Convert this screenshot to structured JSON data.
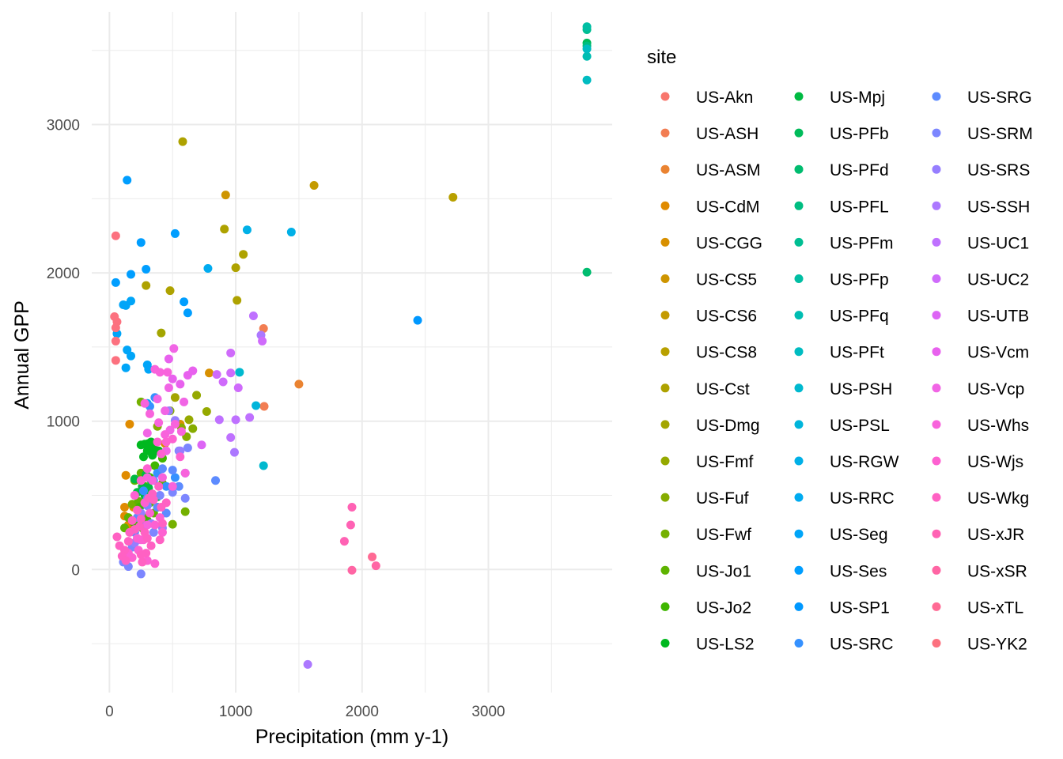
{
  "chart_data": {
    "type": "scatter",
    "xlabel": "Precipitation (mm y-1)",
    "ylabel": "Annual GPP",
    "x_ticks": [
      0,
      1000,
      2000,
      3000
    ],
    "y_ticks": [
      0,
      1000,
      2000,
      3000
    ],
    "xlim": [
      -140,
      3980
    ],
    "ylim": [
      -830,
      3760
    ],
    "grid": true,
    "legend": {
      "title": "site",
      "placement": "right",
      "columns": 3
    },
    "series": [
      {
        "name": "US-Akn",
        "color": "#F8766D",
        "points": []
      },
      {
        "name": "US-ASH",
        "color": "#F27D52",
        "points": [
          [
            1220,
            1625
          ],
          [
            1225,
            1100
          ]
        ]
      },
      {
        "name": "US-ASM",
        "color": "#EA8331",
        "points": [
          [
            1500,
            1250
          ]
        ]
      },
      {
        "name": "US-CdM",
        "color": "#E08B00",
        "points": [
          [
            160,
            980
          ],
          [
            130,
            635
          ],
          [
            120,
            420
          ],
          [
            120,
            360
          ],
          [
            190,
            420
          ],
          [
            150,
            300
          ]
        ]
      },
      {
        "name": "US-CGG",
        "color": "#D89000",
        "points": [
          [
            790,
            1325
          ],
          [
            560,
            980
          ],
          [
            440,
            850
          ]
        ]
      },
      {
        "name": "US-CS5",
        "color": "#CE9500",
        "points": [
          [
            920,
            2525
          ]
        ]
      },
      {
        "name": "US-CS6",
        "color": "#C49A00",
        "points": [
          [
            1620,
            2590
          ]
        ]
      },
      {
        "name": "US-CS8",
        "color": "#B8A000",
        "points": [
          [
            2720,
            2510
          ]
        ]
      },
      {
        "name": "US-Cst",
        "color": "#AEA200",
        "points": [
          [
            580,
            2885
          ],
          [
            910,
            2295
          ],
          [
            1060,
            2125
          ],
          [
            1000,
            2035
          ],
          [
            1010,
            1815
          ],
          [
            480,
            1880
          ],
          [
            290,
            1915
          ]
        ]
      },
      {
        "name": "US-Dmg",
        "color": "#A3A500",
        "points": [
          [
            410,
            1595
          ],
          [
            520,
            1160
          ]
        ]
      },
      {
        "name": "US-Fmf",
        "color": "#95A900",
        "points": [
          [
            770,
            1065
          ],
          [
            690,
            1175
          ],
          [
            630,
            1010
          ]
        ]
      },
      {
        "name": "US-Fuf",
        "color": "#86AC00",
        "points": [
          [
            570,
            955
          ],
          [
            660,
            950
          ],
          [
            610,
            895
          ],
          [
            480,
            1070
          ],
          [
            380,
            965
          ]
        ]
      },
      {
        "name": "US-Fwf",
        "color": "#74B000",
        "points": [
          [
            250,
            1130
          ],
          [
            500,
            305
          ],
          [
            380,
            420
          ],
          [
            600,
            390
          ],
          [
            180,
            440
          ]
        ]
      },
      {
        "name": "US-Jo1",
        "color": "#5EB300",
        "points": [
          [
            200,
            600
          ],
          [
            250,
            650
          ],
          [
            300,
            520
          ],
          [
            230,
            460
          ],
          [
            150,
            350
          ],
          [
            120,
            280
          ],
          [
            350,
            380
          ],
          [
            420,
            580
          ],
          [
            320,
            450
          ],
          [
            270,
            350
          ]
        ]
      },
      {
        "name": "US-Jo2",
        "color": "#3FB600",
        "points": [
          [
            360,
            700
          ],
          [
            420,
            750
          ],
          [
            280,
            560
          ],
          [
            320,
            620
          ],
          [
            190,
            320
          ],
          [
            240,
            420
          ],
          [
            260,
            280
          ],
          [
            300,
            330
          ]
        ]
      },
      {
        "name": "US-LS2",
        "color": "#00B81F",
        "points": [
          [
            250,
            840
          ],
          [
            280,
            845
          ],
          [
            300,
            800
          ],
          [
            330,
            860
          ],
          [
            350,
            820
          ],
          [
            310,
            850
          ],
          [
            390,
            800
          ],
          [
            270,
            760
          ],
          [
            340,
            770
          ]
        ]
      },
      {
        "name": "US-Mpj",
        "color": "#00BA42",
        "points": [
          [
            200,
            610
          ],
          [
            260,
            560
          ],
          [
            280,
            500
          ],
          [
            310,
            550
          ],
          [
            330,
            600
          ],
          [
            220,
            520
          ],
          [
            380,
            490
          ],
          [
            290,
            640
          ]
        ]
      },
      {
        "name": "US-PFb",
        "color": "#00BB5A",
        "points": [
          [
            3780,
            3550
          ]
        ]
      },
      {
        "name": "US-PFd",
        "color": "#00BC6F",
        "points": [
          [
            3780,
            2005
          ]
        ]
      },
      {
        "name": "US-PFL",
        "color": "#00BD81",
        "points": [
          [
            3780,
            3530
          ]
        ]
      },
      {
        "name": "US-PFm",
        "color": "#00BE92",
        "points": [
          [
            3780,
            3640
          ]
        ]
      },
      {
        "name": "US-PFp",
        "color": "#00BEA3",
        "points": [
          [
            3780,
            3660
          ]
        ]
      },
      {
        "name": "US-PFq",
        "color": "#00BDB2",
        "points": [
          [
            3780,
            3460
          ]
        ]
      },
      {
        "name": "US-PFt",
        "color": "#00BCC1",
        "points": [
          [
            3780,
            3300
          ],
          [
            3780,
            3510
          ]
        ]
      },
      {
        "name": "US-PSH",
        "color": "#00B9CF",
        "points": [
          [
            1030,
            1330
          ],
          [
            1220,
            700
          ]
        ]
      },
      {
        "name": "US-PSL",
        "color": "#00B5DB",
        "points": [
          [
            1160,
            1105
          ]
        ]
      },
      {
        "name": "US-RGW",
        "color": "#00B0E7",
        "points": [
          [
            1090,
            2290
          ],
          [
            1440,
            2275
          ]
        ]
      },
      {
        "name": "US-RRC",
        "color": "#00ABF0",
        "points": [
          [
            780,
            2030
          ]
        ]
      },
      {
        "name": "US-Seg",
        "color": "#00A5F8",
        "points": [
          [
            130,
            1780
          ],
          [
            60,
            1590
          ],
          [
            140,
            1480
          ],
          [
            170,
            1440
          ],
          [
            130,
            1360
          ],
          [
            300,
            1380
          ],
          [
            310,
            1350
          ],
          [
            300,
            1120
          ],
          [
            170,
            1810
          ],
          [
            110,
            1785
          ]
        ]
      },
      {
        "name": "US-Ses",
        "color": "#009EFF",
        "points": [
          [
            140,
            2625
          ],
          [
            250,
            2205
          ],
          [
            290,
            2025
          ],
          [
            170,
            1990
          ],
          [
            50,
            1935
          ],
          [
            590,
            1805
          ],
          [
            620,
            1730
          ],
          [
            520,
            2265
          ]
        ]
      },
      {
        "name": "US-SP1",
        "color": "#0098FF",
        "points": [
          [
            2440,
            1680
          ]
        ]
      },
      {
        "name": "US-SRC",
        "color": "#3591FF",
        "points": [
          [
            360,
            1160
          ],
          [
            320,
            1100
          ],
          [
            380,
            650
          ],
          [
            450,
            560
          ],
          [
            520,
            620
          ],
          [
            600,
            650
          ],
          [
            270,
            530
          ]
        ]
      },
      {
        "name": "US-SRG",
        "color": "#5D8BFF",
        "points": [
          [
            840,
            600
          ],
          [
            420,
            680
          ],
          [
            500,
            670
          ],
          [
            350,
            600
          ],
          [
            550,
            560
          ],
          [
            300,
            480
          ],
          [
            380,
            420
          ],
          [
            450,
            380
          ],
          [
            220,
            350
          ],
          [
            260,
            300
          ],
          [
            200,
            250
          ]
        ]
      },
      {
        "name": "US-SRM",
        "color": "#7C86FF",
        "points": [
          [
            300,
            430
          ],
          [
            400,
            500
          ],
          [
            500,
            520
          ],
          [
            600,
            480
          ],
          [
            550,
            800
          ],
          [
            620,
            820
          ],
          [
            230,
            200
          ],
          [
            180,
            150
          ],
          [
            150,
            20
          ],
          [
            110,
            50
          ],
          [
            250,
            -30
          ],
          [
            350,
            250
          ]
        ]
      },
      {
        "name": "US-SRS",
        "color": "#967EFF",
        "points": [
          [
            470,
            1070
          ],
          [
            520,
            1005
          ],
          [
            560,
            800
          ],
          [
            250,
            380
          ],
          [
            330,
            310
          ],
          [
            420,
            280
          ],
          [
            200,
            180
          ]
        ]
      },
      {
        "name": "US-SSH",
        "color": "#AC78FF",
        "points": [
          [
            1570,
            -640
          ],
          [
            1200,
            1580
          ],
          [
            990,
            790
          ]
        ]
      },
      {
        "name": "US-UC1",
        "color": "#BF71FF",
        "points": [
          [
            1140,
            1710
          ],
          [
            1000,
            1010
          ],
          [
            1110,
            1025
          ],
          [
            870,
            1010
          ],
          [
            960,
            890
          ]
        ]
      },
      {
        "name": "US-UC2",
        "color": "#CF6BFB",
        "points": [
          [
            1210,
            1540
          ],
          [
            960,
            1460
          ],
          [
            900,
            1265
          ],
          [
            960,
            1325
          ],
          [
            1020,
            1225
          ],
          [
            850,
            1315
          ]
        ]
      },
      {
        "name": "US-UTB",
        "color": "#DD65F5",
        "points": [
          [
            730,
            840
          ]
        ]
      },
      {
        "name": "US-Vcm",
        "color": "#E861EE",
        "points": [
          [
            620,
            1310
          ],
          [
            660,
            1340
          ],
          [
            560,
            1250
          ],
          [
            470,
            1420
          ],
          [
            500,
            1285
          ]
        ]
      },
      {
        "name": "US-Vcp",
        "color": "#F165E5",
        "points": [
          [
            510,
            1490
          ],
          [
            470,
            1225
          ],
          [
            590,
            1130
          ],
          [
            440,
            1070
          ],
          [
            380,
            1150
          ],
          [
            480,
            940
          ],
          [
            300,
            920
          ],
          [
            450,
            800
          ]
        ]
      },
      {
        "name": "US-Whs",
        "color": "#F863DC",
        "points": [
          [
            460,
            1330
          ],
          [
            360,
            1350
          ],
          [
            400,
            1330
          ],
          [
            280,
            1120
          ],
          [
            320,
            1050
          ],
          [
            390,
            990
          ],
          [
            520,
            980
          ],
          [
            570,
            930
          ],
          [
            440,
            910
          ],
          [
            600,
            650
          ],
          [
            500,
            560
          ],
          [
            300,
            620
          ],
          [
            340,
            600
          ],
          [
            420,
            620
          ],
          [
            300,
            300
          ],
          [
            250,
            200
          ]
        ]
      },
      {
        "name": "US-Wjs",
        "color": "#FD61D1",
        "points": [
          [
            380,
            860
          ],
          [
            410,
            780
          ],
          [
            450,
            860
          ],
          [
            500,
            880
          ],
          [
            560,
            760
          ],
          [
            300,
            680
          ],
          [
            250,
            600
          ],
          [
            200,
            500
          ],
          [
            280,
            450
          ],
          [
            320,
            380
          ],
          [
            360,
            300
          ],
          [
            400,
            350
          ],
          [
            420,
            250
          ],
          [
            270,
            200
          ],
          [
            230,
            130
          ],
          [
            180,
            80
          ],
          [
            300,
            60
          ],
          [
            360,
            40
          ],
          [
            150,
            110
          ],
          [
            220,
            210
          ]
        ]
      },
      {
        "name": "US-Wkg",
        "color": "#FF61C3",
        "points": [
          [
            310,
            480
          ],
          [
            410,
            420
          ],
          [
            340,
            510
          ],
          [
            390,
            560
          ],
          [
            220,
            400
          ],
          [
            250,
            340
          ],
          [
            200,
            270
          ],
          [
            150,
            190
          ],
          [
            120,
            130
          ],
          [
            280,
            250
          ],
          [
            330,
            160
          ],
          [
            400,
            200
          ],
          [
            350,
            470
          ],
          [
            450,
            450
          ],
          [
            60,
            220
          ],
          [
            80,
            160
          ],
          [
            100,
            90
          ],
          [
            130,
            60
          ],
          [
            250,
            100
          ],
          [
            260,
            50
          ],
          [
            290,
            110
          ],
          [
            160,
            250
          ],
          [
            180,
            330
          ],
          [
            240,
            290
          ],
          [
            300,
            210
          ],
          [
            420,
            310
          ]
        ]
      },
      {
        "name": "US-xJR",
        "color": "#FF62B4",
        "points": [
          [
            1920,
            420
          ],
          [
            1910,
            300
          ],
          [
            1860,
            190
          ]
        ]
      },
      {
        "name": "US-xSR",
        "color": "#FF65A4",
        "points": [
          [
            2110,
            25
          ],
          [
            1920,
            -5
          ]
        ]
      },
      {
        "name": "US-xTL",
        "color": "#FF6A94",
        "points": [
          [
            2080,
            85
          ]
        ]
      },
      {
        "name": "US-YK2",
        "color": "#FC717F",
        "points": [
          [
            50,
            2250
          ],
          [
            40,
            1705
          ],
          [
            60,
            1670
          ],
          [
            50,
            1630
          ],
          [
            50,
            1540
          ],
          [
            50,
            1410
          ]
        ]
      }
    ]
  }
}
